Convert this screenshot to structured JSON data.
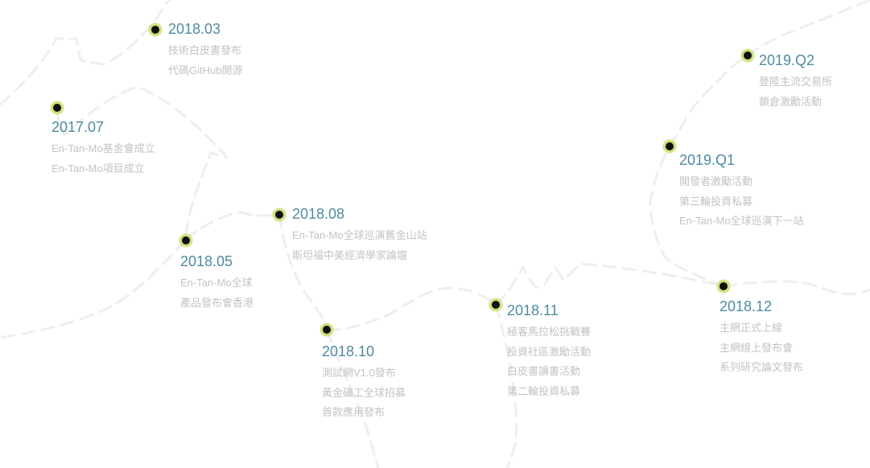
{
  "colors": {
    "date": "#4f8aa0",
    "event": "#c3c3c3",
    "dot_fill": "#111111",
    "dot_ring": "#cfe37a",
    "path": "#eeeeee"
  },
  "milestones": [
    {
      "date": "2017.07",
      "events": [
        "En-Tan-Mo基金會成立",
        "En-Tan-Mo項目成立"
      ]
    },
    {
      "date": "2018.03",
      "events": [
        "技術白皮書發布",
        "代碼GitHub開源"
      ]
    },
    {
      "date": "2018.05",
      "events": [
        "En-Tan-Mo全球",
        "產品發布會香港"
      ]
    },
    {
      "date": "2018.08",
      "events": [
        "En-Tan-Mo全球巡演舊金山站",
        "斯坦福中美經濟學家論壇"
      ]
    },
    {
      "date": "2018.10",
      "events": [
        "測試網V1.0發布",
        "黃金礦工全球招募",
        "首款應用發布"
      ]
    },
    {
      "date": "2018.11",
      "events": [
        "極客馬拉松挑戰賽",
        "投資社區激勵活動",
        "白皮書讀書活動",
        "第二輪投資私募"
      ]
    },
    {
      "date": "2018.12",
      "events": [
        "主網正式上線",
        "主網線上發布會",
        "系列研究論文發布"
      ]
    },
    {
      "date": "2019.Q1",
      "events": [
        "開發者激勵活動",
        "第三輪投資私募",
        "En-Tan-Mo全球巡演下一站"
      ]
    },
    {
      "date": "2019.Q2",
      "events": [
        "登陸主流交易所",
        "鎖倉激勵活動"
      ]
    }
  ]
}
